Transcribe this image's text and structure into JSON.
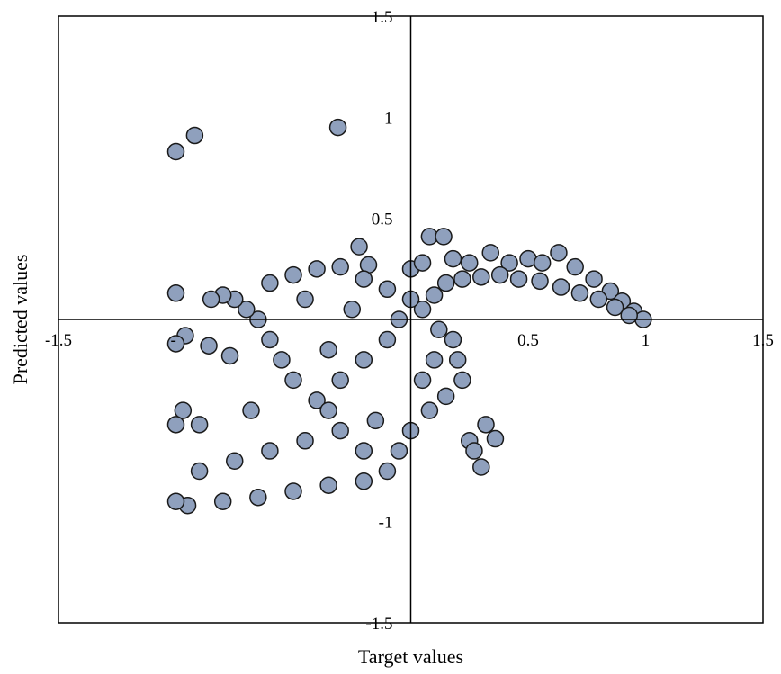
{
  "chart_data": {
    "type": "scatter",
    "title": "",
    "xlabel": "Target values",
    "ylabel": "Predicted values",
    "xlim": [
      -1.5,
      1.5
    ],
    "ylim": [
      -1.5,
      1.5
    ],
    "x_ticks": [
      {
        "value": -1.5,
        "label": "-1.5"
      },
      {
        "value": 0.5,
        "label": "0.5"
      },
      {
        "value": 1,
        "label": "1"
      },
      {
        "value": 1.5,
        "label": "1.5"
      }
    ],
    "y_ticks": [
      {
        "value": 1.5,
        "label": "1.5"
      },
      {
        "value": 1,
        "label": "1"
      },
      {
        "value": 0.5,
        "label": "0.5"
      },
      {
        "value": -1,
        "label": "-1"
      },
      {
        "value": -1.5,
        "label": "-1.5"
      }
    ],
    "grid": false,
    "legend": "none",
    "marker_fill": "#8fa0bd",
    "marker_edge": "#1a1a1a",
    "x_cross_label_at_left": "-",
    "series": [
      {
        "points": [
          [
            -1.0,
            0.83
          ],
          [
            -0.92,
            0.91
          ],
          [
            -0.31,
            0.95
          ],
          [
            -1.0,
            0.13
          ],
          [
            -0.22,
            0.36
          ],
          [
            0.08,
            0.41
          ],
          [
            0.14,
            0.41
          ],
          [
            0.63,
            0.33
          ],
          [
            0.34,
            0.33
          ],
          [
            -0.18,
            0.27
          ],
          [
            -0.96,
            -0.08
          ],
          [
            -1.0,
            -0.12
          ],
          [
            -0.86,
            -0.13
          ],
          [
            -0.77,
            -0.18
          ],
          [
            -0.68,
            -0.45
          ],
          [
            -0.97,
            -0.45
          ],
          [
            -1.0,
            -0.52
          ],
          [
            -0.9,
            -0.52
          ],
          [
            0.32,
            -0.52
          ],
          [
            0.25,
            -0.6
          ],
          [
            0.27,
            -0.65
          ],
          [
            0.36,
            -0.59
          ],
          [
            0.3,
            -0.73
          ],
          [
            0.0,
            0.25
          ],
          [
            0.05,
            0.28
          ],
          [
            0.18,
            0.3
          ],
          [
            0.25,
            0.28
          ],
          [
            0.42,
            0.28
          ],
          [
            0.5,
            0.3
          ],
          [
            0.56,
            0.28
          ],
          [
            0.7,
            0.26
          ],
          [
            0.78,
            0.2
          ],
          [
            0.85,
            0.14
          ],
          [
            0.9,
            0.09
          ],
          [
            0.95,
            0.04
          ],
          [
            0.99,
            0.0
          ],
          [
            0.93,
            0.02
          ],
          [
            0.87,
            0.06
          ],
          [
            0.8,
            0.1
          ],
          [
            0.72,
            0.13
          ],
          [
            0.64,
            0.16
          ],
          [
            0.55,
            0.19
          ],
          [
            0.46,
            0.2
          ],
          [
            0.38,
            0.22
          ],
          [
            0.3,
            0.21
          ],
          [
            0.22,
            0.2
          ],
          [
            0.15,
            0.18
          ],
          [
            0.1,
            0.12
          ],
          [
            0.05,
            0.05
          ],
          [
            0.12,
            -0.05
          ],
          [
            0.18,
            -0.1
          ],
          [
            0.2,
            -0.2
          ],
          [
            0.22,
            -0.3
          ],
          [
            0.15,
            -0.38
          ],
          [
            0.08,
            -0.45
          ],
          [
            0.0,
            -0.55
          ],
          [
            -0.05,
            -0.65
          ],
          [
            -0.1,
            -0.75
          ],
          [
            -0.2,
            -0.8
          ],
          [
            -0.35,
            -0.82
          ],
          [
            -0.5,
            -0.85
          ],
          [
            -0.65,
            -0.88
          ],
          [
            -0.8,
            -0.9
          ],
          [
            -0.95,
            -0.92
          ],
          [
            -1.0,
            -0.9
          ],
          [
            -0.9,
            -0.75
          ],
          [
            -0.75,
            -0.7
          ],
          [
            -0.6,
            -0.65
          ],
          [
            -0.45,
            -0.6
          ],
          [
            -0.3,
            -0.55
          ],
          [
            -0.15,
            -0.5
          ],
          [
            -0.4,
            -0.4
          ],
          [
            -0.5,
            -0.3
          ],
          [
            -0.55,
            -0.2
          ],
          [
            -0.6,
            -0.1
          ],
          [
            -0.65,
            0.0
          ],
          [
            -0.7,
            0.05
          ],
          [
            -0.75,
            0.1
          ],
          [
            -0.8,
            0.12
          ],
          [
            -0.85,
            0.1
          ],
          [
            -0.6,
            0.18
          ],
          [
            -0.5,
            0.22
          ],
          [
            -0.4,
            0.25
          ],
          [
            -0.3,
            0.26
          ],
          [
            -0.2,
            0.2
          ],
          [
            -0.1,
            0.15
          ],
          [
            0.0,
            0.1
          ],
          [
            -0.05,
            0.0
          ],
          [
            -0.1,
            -0.1
          ],
          [
            -0.2,
            -0.2
          ],
          [
            -0.3,
            -0.3
          ],
          [
            -0.35,
            -0.15
          ],
          [
            -0.25,
            0.05
          ],
          [
            -0.45,
            0.1
          ],
          [
            -0.35,
            -0.45
          ],
          [
            -0.2,
            -0.65
          ],
          [
            0.05,
            -0.3
          ],
          [
            0.1,
            -0.2
          ]
        ]
      }
    ]
  }
}
